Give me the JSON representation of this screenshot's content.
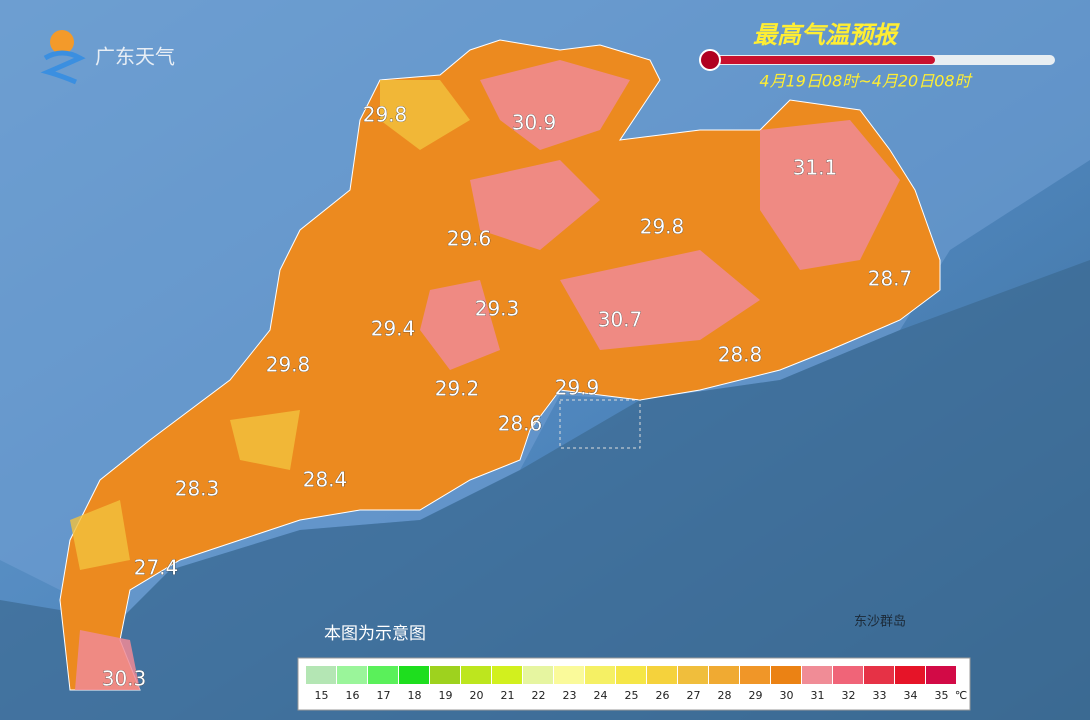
{
  "header": {
    "logo": "广东天气",
    "title": "最高气温预报",
    "period": "4月19日08时~4月20日08时"
  },
  "map": {
    "labels": [
      29.8,
      30.9,
      31.1,
      29.6,
      29.8,
      28.7,
      29.3,
      29.4,
      30.7,
      29.8,
      28.8,
      29.2,
      29.9,
      28.6,
      28.3,
      28.4,
      27.4,
      30.3
    ],
    "note": "本图为示意图",
    "island": "东沙群岛"
  },
  "legend": {
    "values": [
      15,
      16,
      17,
      18,
      19,
      20,
      21,
      22,
      23,
      24,
      25,
      26,
      27,
      28,
      29,
      30,
      31,
      32,
      33,
      34,
      35
    ],
    "colors": [
      "#b4e6b4",
      "#9af59a",
      "#5af05a",
      "#1ede1e",
      "#9ed21e",
      "#bde61e",
      "#d2f01e",
      "#e6f5a0",
      "#fafa9a",
      "#f5f064",
      "#f5e646",
      "#f5d23c",
      "#f0be3c",
      "#f0aa32",
      "#f09628",
      "#eb8214",
      "#f08c96",
      "#f06478",
      "#e63246",
      "#e61428",
      "#d20a46"
    ],
    "unit": "℃"
  }
}
